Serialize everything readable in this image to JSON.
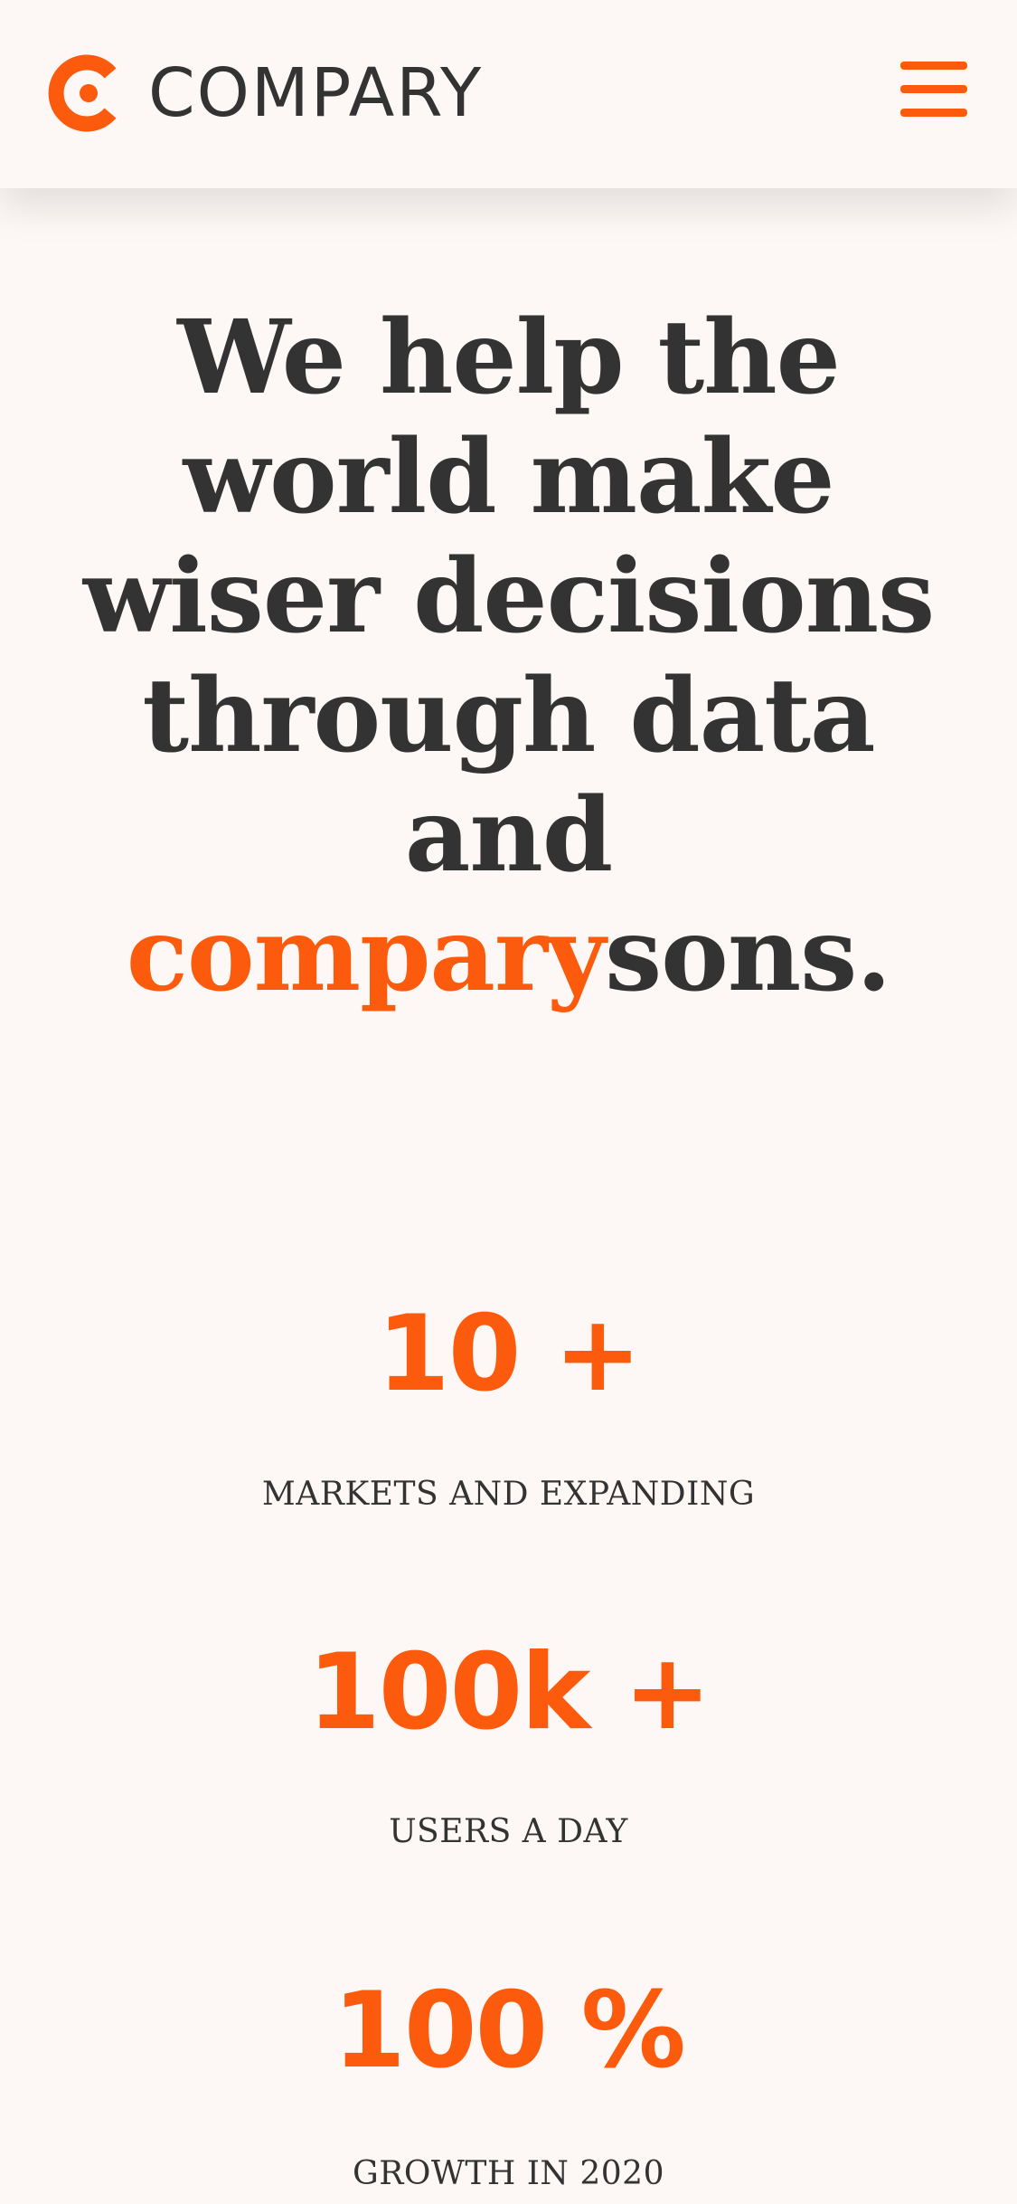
{
  "header": {
    "logo_text": "COMPARY",
    "logo_icon": "compary-c-logo-icon",
    "menu_icon": "hamburger-menu-icon"
  },
  "hero": {
    "headline_part1": "We help the world make wiser decisions through data and ",
    "headline_accent": "compary",
    "headline_part2": "sons."
  },
  "stats": [
    {
      "value": "10 +",
      "label": "MARKETS AND EXPANDING"
    },
    {
      "value": "100k +",
      "label": "USERS A DAY"
    },
    {
      "value": "100 %",
      "label": "GROWTH IN 2020"
    }
  ],
  "colors": {
    "accent": "#fc5a0c",
    "text": "#333333",
    "background": "#fdf8f5"
  }
}
